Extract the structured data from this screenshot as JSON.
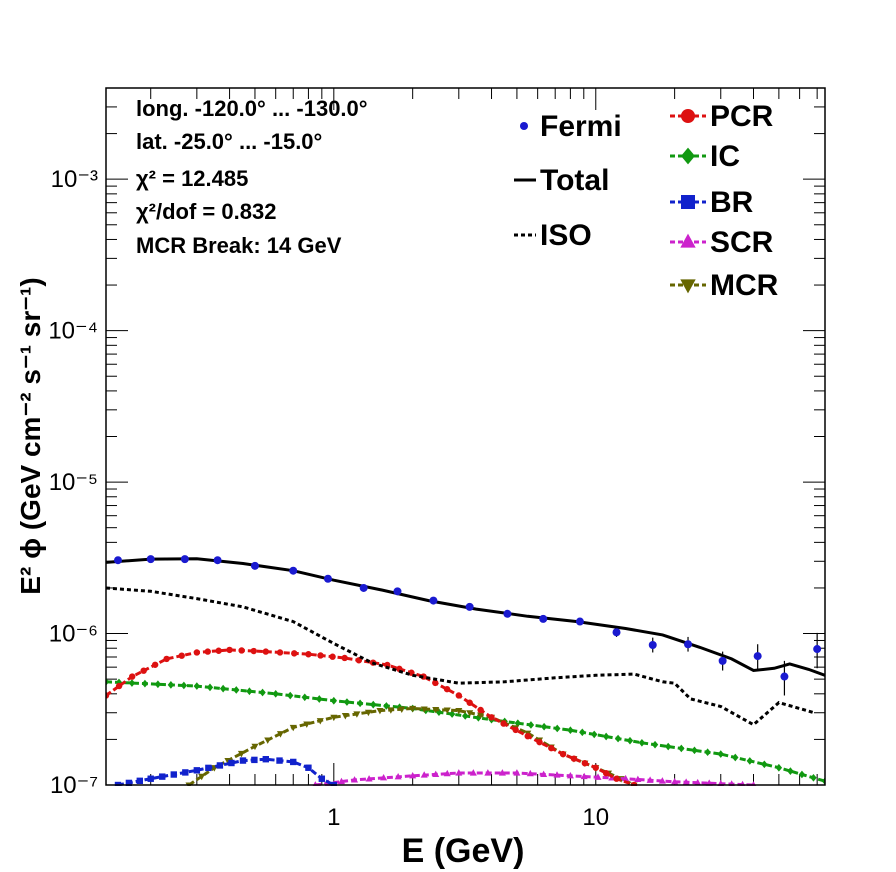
{
  "chart_data": {
    "type": "line",
    "xlabel": "E (GeV)",
    "ylabel": "E² ϕ (GeV cm⁻² s⁻¹ sr⁻¹)",
    "xscale": "log",
    "yscale": "log",
    "xlim": [
      0.135,
      75
    ],
    "ylim": [
      1e-07,
      0.004
    ],
    "x_tick_labels": [
      "1",
      "10"
    ],
    "y_tick_labels": [
      "10⁻⁷",
      "10⁻⁶",
      "10⁻⁵",
      "10⁻⁴",
      "10⁻³"
    ],
    "info_lines": [
      "long. -120.0° ... -130.0°",
      "lat. -25.0° ... -15.0°",
      "χ² = 12.485",
      "χ²/dof = 0.832",
      "MCR Break: 14 GeV"
    ],
    "legend": {
      "placement": "top-right",
      "entries": [
        "Fermi",
        "Total",
        "ISO",
        "PCR",
        "IC",
        "BR",
        "SCR",
        "MCR"
      ]
    },
    "colors": {
      "Fermi": "#1a1ad0",
      "Total": "#000000",
      "ISO": "#000000",
      "PCR": "#dd1111",
      "IC": "#119911",
      "BR": "#1122cc",
      "SCR": "#cc22cc",
      "MCR": "#666600"
    },
    "series": [
      {
        "name": "Fermi",
        "style": "points",
        "points": [
          [
            0.15,
            3.05e-06
          ],
          [
            0.2,
            3.1e-06
          ],
          [
            0.27,
            3.1e-06
          ],
          [
            0.36,
            3.05e-06
          ],
          [
            0.5,
            2.8e-06
          ],
          [
            0.7,
            2.6e-06
          ],
          [
            0.95,
            2.3e-06
          ],
          [
            1.3,
            2e-06
          ],
          [
            1.75,
            1.9e-06
          ],
          [
            2.4,
            1.65e-06
          ],
          [
            3.3,
            1.5e-06
          ],
          [
            4.6,
            1.35e-06
          ],
          [
            6.3,
            1.25e-06
          ],
          [
            8.7,
            1.2e-06
          ],
          [
            12,
            1.02e-06
          ],
          [
            16.5,
            8.4e-07
          ],
          [
            22.5,
            8.5e-07
          ],
          [
            30.5,
            6.6e-07
          ],
          [
            41.5,
            7.1e-07
          ],
          [
            52.5,
            5.2e-07
          ],
          [
            70,
            7.9e-07
          ]
        ],
        "errors": [
          [
            0,
            0
          ],
          [
            0,
            0
          ],
          [
            0,
            0
          ],
          [
            0,
            0
          ],
          [
            0,
            0
          ],
          [
            0,
            0
          ],
          [
            0,
            0
          ],
          [
            0,
            0
          ],
          [
            0,
            0
          ],
          [
            0,
            0
          ],
          [
            0,
            0
          ],
          [
            0,
            0
          ],
          [
            0,
            0
          ],
          [
            0,
            0
          ],
          [
            7e-08,
            7e-08
          ],
          [
            9e-08,
            1e-07
          ],
          [
            9e-08,
            1e-07
          ],
          [
            9e-08,
            1e-07
          ],
          [
            1.3e-07,
            1.4e-07
          ],
          [
            1.3e-07,
            1.4e-07
          ],
          [
            2e-07,
            2.2e-07
          ]
        ]
      },
      {
        "name": "Total",
        "style": "solid",
        "points": [
          [
            0.135,
            2.95e-06
          ],
          [
            0.2,
            3.1e-06
          ],
          [
            0.3,
            3.12e-06
          ],
          [
            0.45,
            2.9e-06
          ],
          [
            0.7,
            2.6e-06
          ],
          [
            1.0,
            2.25e-06
          ],
          [
            1.5,
            1.95e-06
          ],
          [
            2.3,
            1.65e-06
          ],
          [
            3.5,
            1.45e-06
          ],
          [
            5.5,
            1.3e-06
          ],
          [
            8.5,
            1.2e-06
          ],
          [
            13,
            1.08e-06
          ],
          [
            18,
            9.8e-07
          ],
          [
            25,
            8.1e-07
          ],
          [
            33,
            6.8e-07
          ],
          [
            40,
            5.7e-07
          ],
          [
            48,
            5.9e-07
          ],
          [
            55,
            6.3e-07
          ],
          [
            65,
            5.8e-07
          ],
          [
            75,
            5.3e-07
          ]
        ]
      },
      {
        "name": "ISO",
        "style": "dotted",
        "points": [
          [
            0.135,
            2e-06
          ],
          [
            0.2,
            1.9e-06
          ],
          [
            0.3,
            1.7e-06
          ],
          [
            0.45,
            1.5e-06
          ],
          [
            0.7,
            1.2e-06
          ],
          [
            1.0,
            8.6e-07
          ],
          [
            1.4,
            6.4e-07
          ],
          [
            2.0,
            5.3e-07
          ],
          [
            3.0,
            4.7e-07
          ],
          [
            4.5,
            4.8e-07
          ],
          [
            7,
            5.1e-07
          ],
          [
            10,
            5.3e-07
          ],
          [
            14,
            5.4e-07
          ],
          [
            18,
            4.8e-07
          ],
          [
            20,
            4.7e-07
          ],
          [
            23,
            3.7e-07
          ],
          [
            30,
            3.3e-07
          ],
          [
            40,
            2.5e-07
          ],
          [
            50,
            3.5e-07
          ],
          [
            60,
            3.2e-07
          ],
          [
            68,
            3e-07
          ]
        ]
      },
      {
        "name": "PCR",
        "style": "dashed-markers",
        "points": [
          [
            0.135,
            3.9e-07
          ],
          [
            0.17,
            5.2e-07
          ],
          [
            0.23,
            6.8e-07
          ],
          [
            0.3,
            7.5e-07
          ],
          [
            0.4,
            7.8e-07
          ],
          [
            0.55,
            7.6e-07
          ],
          [
            0.8,
            7.3e-07
          ],
          [
            1.1,
            6.9e-07
          ],
          [
            1.6,
            6.2e-07
          ],
          [
            2.2,
            5.2e-07
          ],
          [
            3.0,
            3.9e-07
          ],
          [
            4.0,
            2.8e-07
          ],
          [
            5.5,
            2.1e-07
          ],
          [
            7.5,
            1.6e-07
          ],
          [
            10,
            1.3e-07
          ],
          [
            12,
            1.1e-07
          ],
          [
            14,
            1e-07
          ]
        ]
      },
      {
        "name": "IC",
        "style": "dashed-markers",
        "points": [
          [
            0.135,
            4.8e-07
          ],
          [
            0.3,
            4.5e-07
          ],
          [
            0.6,
            4e-07
          ],
          [
            1.0,
            3.6e-07
          ],
          [
            2.0,
            3.2e-07
          ],
          [
            4.0,
            2.7e-07
          ],
          [
            8.0,
            2.3e-07
          ],
          [
            15,
            1.9e-07
          ],
          [
            30,
            1.6e-07
          ],
          [
            50,
            1.3e-07
          ],
          [
            75,
            1.06e-07
          ]
        ]
      },
      {
        "name": "BR",
        "style": "dashed-markers",
        "points": [
          [
            0.15,
            1e-07
          ],
          [
            0.2,
            1.1e-07
          ],
          [
            0.3,
            1.25e-07
          ],
          [
            0.45,
            1.45e-07
          ],
          [
            0.55,
            1.48e-07
          ],
          [
            0.7,
            1.42e-07
          ],
          [
            0.8,
            1.3e-07
          ],
          [
            0.9,
            1.1e-07
          ],
          [
            1.0,
            1e-07
          ]
        ]
      },
      {
        "name": "SCR",
        "style": "dashed-markers",
        "points": [
          [
            0.85,
            1e-07
          ],
          [
            1.2,
            1.08e-07
          ],
          [
            2.0,
            1.15e-07
          ],
          [
            3.0,
            1.2e-07
          ],
          [
            5.0,
            1.2e-07
          ],
          [
            8.0,
            1.15e-07
          ],
          [
            13,
            1.1e-07
          ],
          [
            20,
            1.05e-07
          ],
          [
            30,
            1.02e-07
          ],
          [
            40,
            1e-07
          ]
        ]
      },
      {
        "name": "MCR",
        "style": "dashed-markers",
        "points": [
          [
            0.28,
            1e-07
          ],
          [
            0.35,
            1.3e-07
          ],
          [
            0.5,
            1.8e-07
          ],
          [
            0.7,
            2.4e-07
          ],
          [
            1.0,
            2.8e-07
          ],
          [
            1.5,
            3.1e-07
          ],
          [
            2.0,
            3.2e-07
          ],
          [
            3.0,
            3.1e-07
          ],
          [
            4.0,
            2.8e-07
          ],
          [
            5.5,
            2.2e-07
          ],
          [
            7.5,
            1.6e-07
          ],
          [
            10,
            1.3e-07
          ],
          [
            12.5,
            1.1e-07
          ],
          [
            14,
            1e-07
          ]
        ]
      }
    ]
  }
}
